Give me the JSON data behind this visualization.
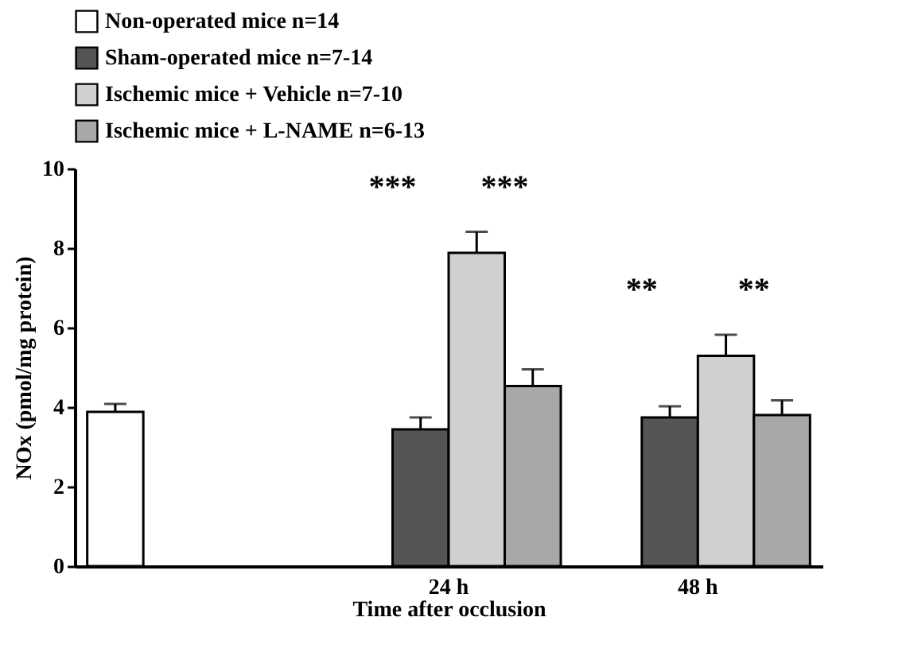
{
  "chart_data": {
    "type": "bar",
    "xlabel": "Time after occlusion",
    "ylabel": "NOx (pmol/mg protein)",
    "categories": [
      null,
      "24 h",
      "48 h"
    ],
    "series": [
      {
        "name": "Non-operated mice  n=14",
        "color": "#ffffff",
        "values": [
          3.88,
          null,
          null
        ],
        "errors": [
          0.2,
          null,
          null
        ]
      },
      {
        "name": "Sham-operated mice n=7-14",
        "color": "#555555",
        "values": [
          null,
          3.44,
          3.74
        ],
        "errors": [
          null,
          0.3,
          0.28
        ]
      },
      {
        "name": "Ischemic mice + Vehicle n=7-10",
        "color": "#d0d0d0",
        "values": [
          null,
          7.88,
          5.29
        ],
        "errors": [
          null,
          0.53,
          0.53
        ]
      },
      {
        "name": "Ischemic mice + L-NAME n=6-13",
        "color": "#a8a8a8",
        "values": [
          null,
          4.53,
          3.8
        ],
        "errors": [
          null,
          0.42,
          0.37
        ]
      }
    ],
    "ylim": [
      0,
      10
    ],
    "yticks": [
      0,
      2,
      4,
      6,
      8,
      10
    ],
    "grid": false,
    "legend": "top",
    "annotations": [
      "***",
      "***",
      "**",
      "**"
    ]
  }
}
